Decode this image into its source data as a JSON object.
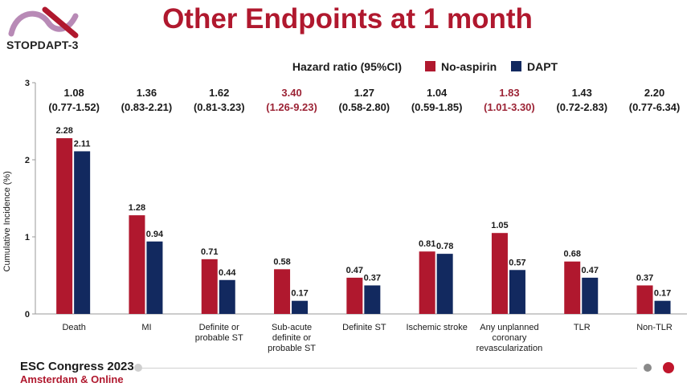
{
  "header": {
    "title": "Other Endpoints at 1 month",
    "logo_text": "STOPDAPT-3"
  },
  "footer": {
    "line1": "ESC Congress 2023",
    "line2": "Amsterdam & Online"
  },
  "colors": {
    "title": "#b0182e",
    "no_aspirin": "#b0182e",
    "dapt": "#12295f",
    "hr_highlight": "#9c2335",
    "hr_normal": "#1a1a1a",
    "footer_dot_gray": "#8a8a8a",
    "footer_dot_red": "#c0162c"
  },
  "chart_data": {
    "type": "bar",
    "legend_title": "Hazard ratio (95%CI)",
    "ylabel": "Cumulative Incidence (%)",
    "ylim": [
      0,
      3
    ],
    "yticks": [
      "0",
      "1",
      "2",
      "3"
    ],
    "grid": false,
    "legend_position": "top-right",
    "categories": [
      [
        "Death"
      ],
      [
        "MI"
      ],
      [
        "Definite or",
        "probable ST"
      ],
      [
        "Sub-acute",
        "definite or",
        "probable ST"
      ],
      [
        "Definite ST"
      ],
      [
        "Ischemic stroke"
      ],
      [
        "Any unplanned",
        "coronary",
        "revascularization"
      ],
      [
        "TLR"
      ],
      [
        "Non-TLR"
      ]
    ],
    "series": [
      {
        "name": "No-aspirin",
        "values": [
          2.28,
          1.28,
          0.71,
          0.58,
          0.47,
          0.81,
          1.05,
          0.68,
          0.37
        ],
        "labels": [
          "2.28",
          "1.28",
          "0.71",
          "0.58",
          "0.47",
          "0.81",
          "1.05",
          "0.68",
          "0.37"
        ]
      },
      {
        "name": "DAPT",
        "values": [
          2.11,
          0.94,
          0.44,
          0.17,
          0.37,
          0.78,
          0.57,
          0.47,
          0.17
        ],
        "labels": [
          "2.11",
          "0.94",
          "0.44",
          "0.17",
          "0.37",
          "0.78",
          "0.57",
          "0.47",
          "0.17"
        ]
      }
    ],
    "hazard_ratios": [
      {
        "hr": "1.08",
        "ci": "(0.77-1.52)",
        "highlight": false
      },
      {
        "hr": "1.36",
        "ci": "(0.83-2.21)",
        "highlight": false
      },
      {
        "hr": "1.62",
        "ci": "(0.81-3.23)",
        "highlight": false
      },
      {
        "hr": "3.40",
        "ci": "(1.26-9.23)",
        "highlight": true
      },
      {
        "hr": "1.27",
        "ci": "(0.58-2.80)",
        "highlight": false
      },
      {
        "hr": "1.04",
        "ci": "(0.59-1.85)",
        "highlight": false
      },
      {
        "hr": "1.83",
        "ci": "(1.01-3.30)",
        "highlight": true
      },
      {
        "hr": "1.43",
        "ci": "(0.72-2.83)",
        "highlight": false
      },
      {
        "hr": "2.20",
        "ci": "(0.77-6.34)",
        "highlight": false
      }
    ]
  }
}
